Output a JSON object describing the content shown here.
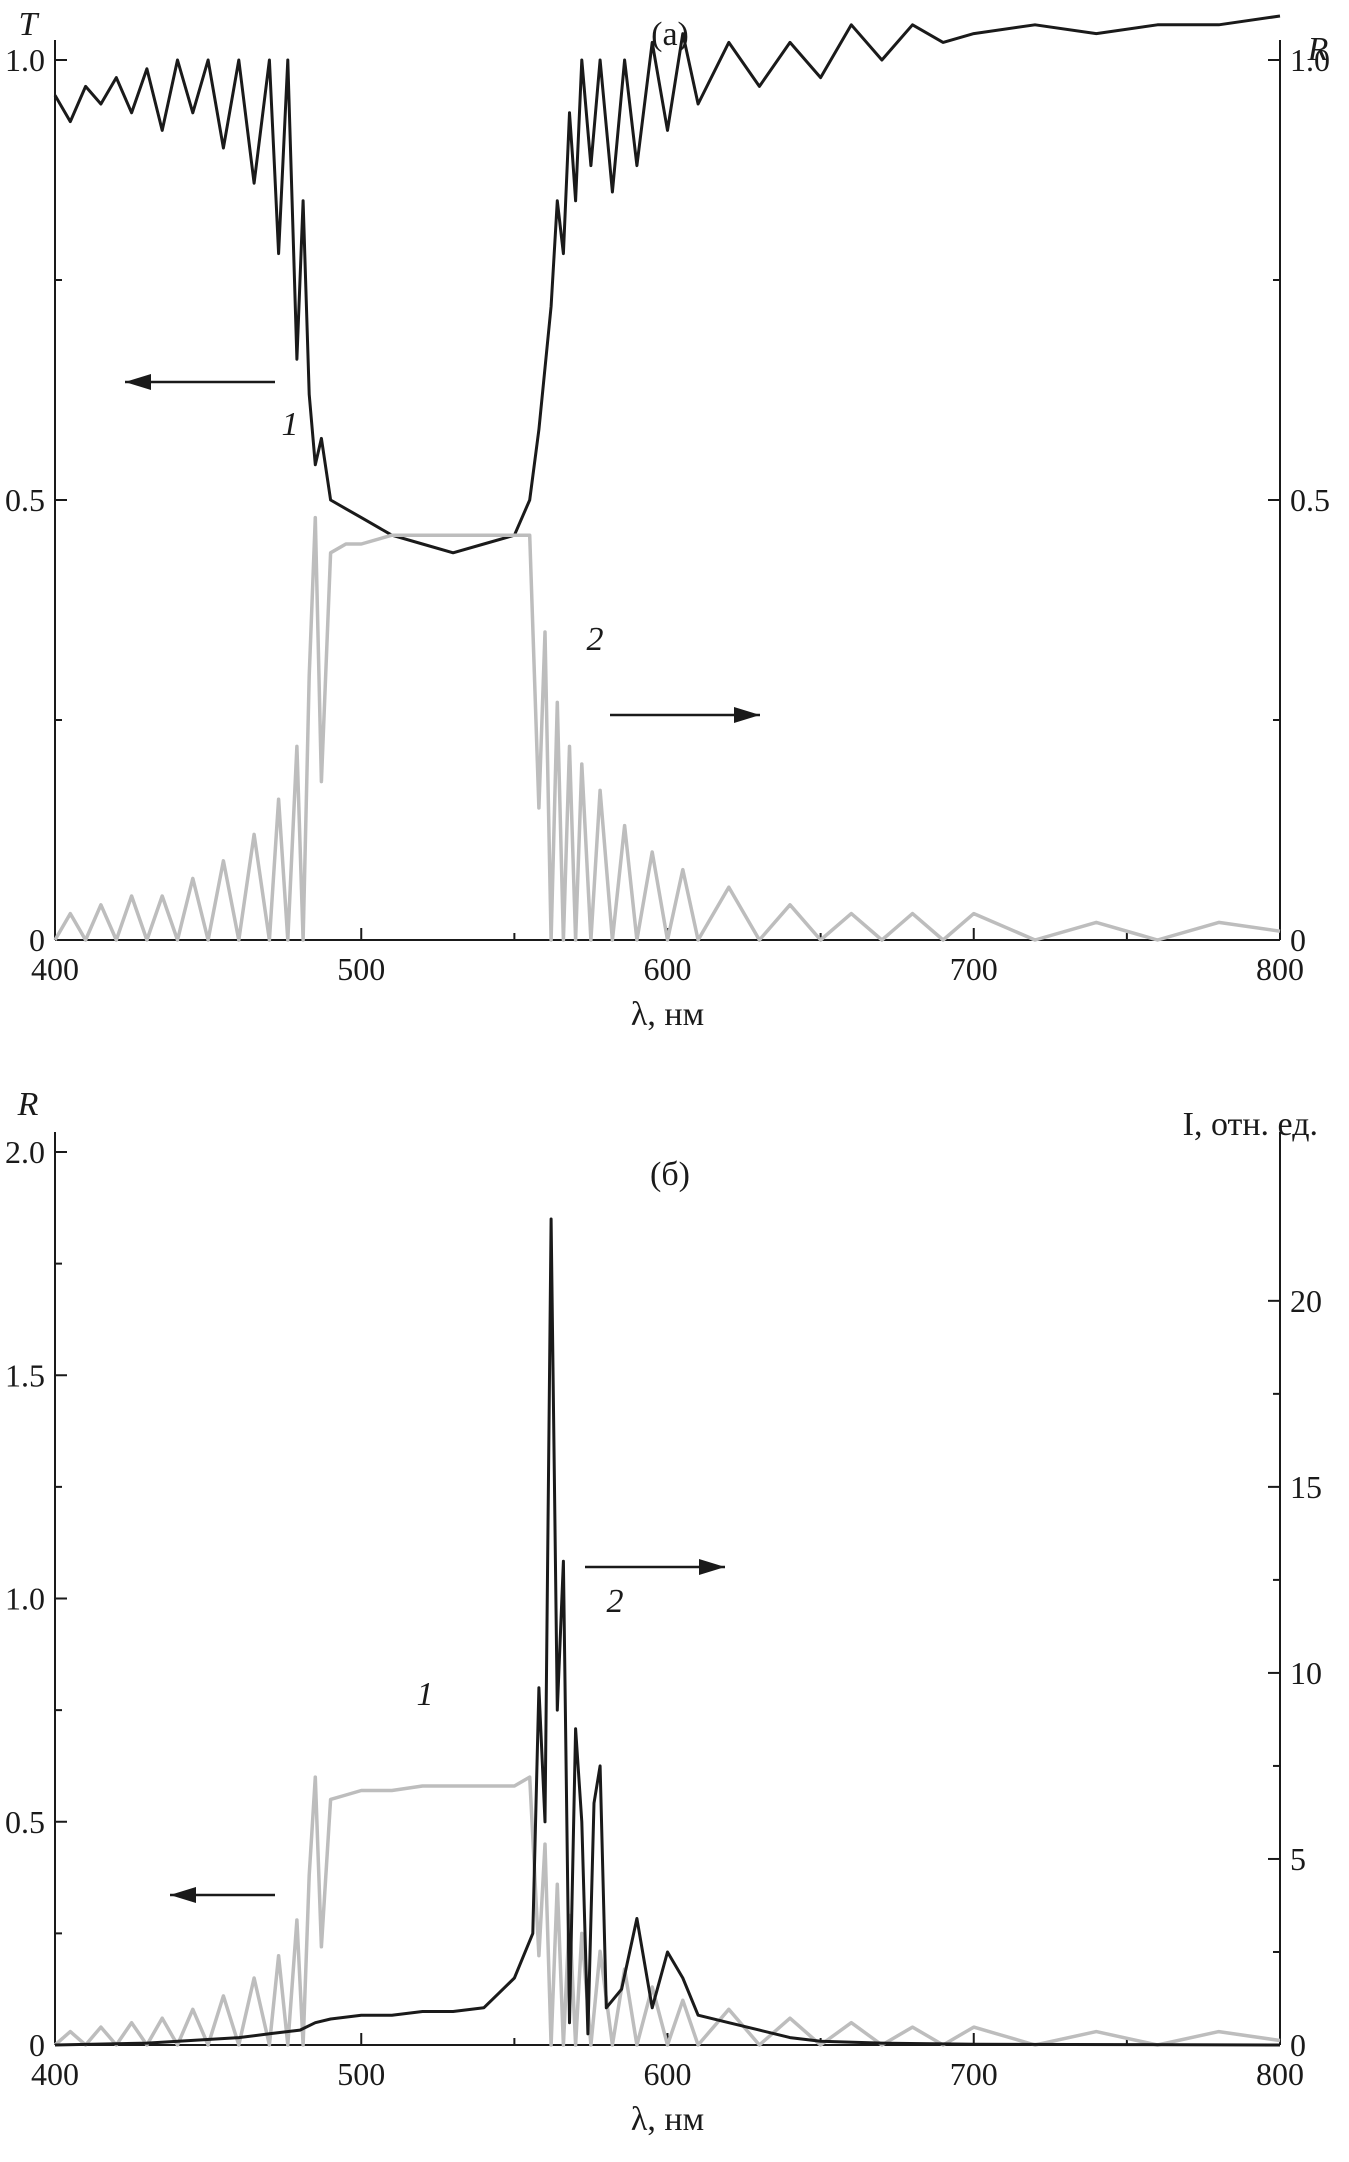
{
  "chart_data": [
    {
      "panel": "(a)",
      "type": "line",
      "xlabel": "λ, нм",
      "ylabel_left": "T",
      "ylabel_right": "R",
      "xlim": [
        400,
        800
      ],
      "ylim_left": [
        0,
        1.0
      ],
      "ylim_right": [
        0,
        1.0
      ],
      "x_ticks": [
        "400",
        "500",
        "600",
        "700",
        "800"
      ],
      "y_left_ticks": [
        "0",
        "0.5",
        "1.0"
      ],
      "y_right_ticks": [
        "0",
        "0.5",
        "1.0"
      ],
      "grid": false,
      "series": [
        {
          "label": "1",
          "axis": "left",
          "color": "#1a1a1a",
          "arrow": "left",
          "x": [
            400,
            405,
            410,
            415,
            420,
            425,
            430,
            435,
            440,
            445,
            450,
            455,
            460,
            465,
            470,
            473,
            476,
            479,
            481,
            483,
            485,
            487,
            490,
            495,
            500,
            510,
            520,
            530,
            540,
            550,
            555,
            558,
            560,
            562,
            564,
            566,
            568,
            570,
            572,
            575,
            578,
            582,
            586,
            590,
            595,
            600,
            605,
            610,
            620,
            630,
            640,
            650,
            660,
            670,
            680,
            690,
            700,
            720,
            740,
            760,
            780,
            800
          ],
          "y": [
            0.96,
            0.93,
            0.97,
            0.95,
            0.98,
            0.94,
            0.99,
            0.92,
            1.0,
            0.94,
            1.0,
            0.9,
            1.0,
            0.86,
            1.0,
            0.78,
            1.0,
            0.66,
            0.84,
            0.62,
            0.54,
            0.57,
            0.5,
            0.49,
            0.48,
            0.46,
            0.45,
            0.44,
            0.45,
            0.46,
            0.5,
            0.58,
            0.65,
            0.72,
            0.84,
            0.78,
            0.94,
            0.84,
            1.0,
            0.88,
            1.0,
            0.85,
            1.0,
            0.88,
            1.02,
            0.92,
            1.03,
            0.95,
            1.02,
            0.97,
            1.02,
            0.98,
            1.04,
            1.0,
            1.04,
            1.02,
            1.03,
            1.04,
            1.03,
            1.04,
            1.04,
            1.05
          ]
        },
        {
          "label": "2",
          "axis": "right",
          "color": "#bdbdbd",
          "arrow": "right",
          "x": [
            400,
            405,
            410,
            415,
            420,
            425,
            430,
            435,
            440,
            445,
            450,
            455,
            460,
            465,
            470,
            473,
            476,
            479,
            481,
            483,
            485,
            487,
            490,
            495,
            500,
            510,
            520,
            530,
            540,
            550,
            555,
            558,
            560,
            562,
            564,
            566,
            568,
            570,
            572,
            575,
            578,
            582,
            586,
            590,
            595,
            600,
            605,
            610,
            620,
            630,
            640,
            650,
            660,
            670,
            680,
            690,
            700,
            720,
            740,
            760,
            780,
            800
          ],
          "y": [
            0.0,
            0.03,
            0.0,
            0.04,
            0.0,
            0.05,
            0.0,
            0.05,
            0.0,
            0.07,
            0.0,
            0.09,
            0.0,
            0.12,
            0.0,
            0.16,
            0.0,
            0.22,
            0.0,
            0.3,
            0.48,
            0.18,
            0.44,
            0.45,
            0.45,
            0.46,
            0.46,
            0.46,
            0.46,
            0.46,
            0.46,
            0.15,
            0.35,
            0.0,
            0.27,
            0.0,
            0.22,
            0.0,
            0.2,
            0.0,
            0.17,
            0.0,
            0.13,
            0.0,
            0.1,
            0.0,
            0.08,
            0.0,
            0.06,
            0.0,
            0.04,
            0.0,
            0.03,
            0.0,
            0.03,
            0.0,
            0.03,
            0.0,
            0.02,
            0.0,
            0.02,
            0.01
          ]
        }
      ]
    },
    {
      "panel": "(б)",
      "type": "line",
      "xlabel": "λ, нм",
      "ylabel_left": "R",
      "ylabel_right": "I, отн. ед.",
      "xlim": [
        400,
        800
      ],
      "ylim_left": [
        0,
        2.0
      ],
      "ylim_right": [
        0,
        24
      ],
      "x_ticks": [
        "400",
        "500",
        "600",
        "700",
        "800"
      ],
      "y_left_ticks": [
        "0",
        "0.5",
        "1.0",
        "1.5",
        "2.0"
      ],
      "y_right_ticks": [
        "0",
        "5",
        "10",
        "15",
        "20"
      ],
      "grid": false,
      "series": [
        {
          "label": "1",
          "axis": "left",
          "color": "#bdbdbd",
          "arrow": "left",
          "x": [
            400,
            405,
            410,
            415,
            420,
            425,
            430,
            435,
            440,
            445,
            450,
            455,
            460,
            465,
            470,
            473,
            476,
            479,
            481,
            483,
            485,
            487,
            490,
            495,
            500,
            510,
            520,
            530,
            540,
            550,
            555,
            558,
            560,
            562,
            564,
            566,
            568,
            570,
            572,
            575,
            578,
            582,
            586,
            590,
            595,
            600,
            605,
            610,
            620,
            630,
            640,
            650,
            660,
            670,
            680,
            690,
            700,
            720,
            740,
            760,
            780,
            800
          ],
          "y": [
            0.0,
            0.03,
            0.0,
            0.04,
            0.0,
            0.05,
            0.0,
            0.06,
            0.0,
            0.08,
            0.0,
            0.11,
            0.0,
            0.15,
            0.0,
            0.2,
            0.0,
            0.28,
            0.0,
            0.38,
            0.6,
            0.22,
            0.55,
            0.56,
            0.57,
            0.57,
            0.58,
            0.58,
            0.58,
            0.58,
            0.6,
            0.2,
            0.45,
            0.0,
            0.36,
            0.0,
            0.29,
            0.0,
            0.25,
            0.0,
            0.21,
            0.0,
            0.17,
            0.0,
            0.13,
            0.0,
            0.1,
            0.0,
            0.08,
            0.0,
            0.06,
            0.0,
            0.05,
            0.0,
            0.04,
            0.0,
            0.04,
            0.0,
            0.03,
            0.0,
            0.03,
            0.01
          ]
        },
        {
          "label": "2",
          "axis": "right",
          "color": "#1a1a1a",
          "arrow": "right",
          "x": [
            400,
            430,
            460,
            470,
            480,
            485,
            490,
            500,
            510,
            520,
            530,
            540,
            545,
            550,
            553,
            556,
            558,
            560,
            562,
            564,
            566,
            568,
            570,
            572,
            574,
            576,
            578,
            580,
            585,
            590,
            595,
            600,
            605,
            610,
            620,
            630,
            640,
            650,
            670,
            700,
            750,
            800
          ],
          "y": [
            0.0,
            0.05,
            0.2,
            0.3,
            0.4,
            0.6,
            0.7,
            0.8,
            0.8,
            0.9,
            0.9,
            1.0,
            1.4,
            1.8,
            2.4,
            3.0,
            9.6,
            6.0,
            22.2,
            9.0,
            13.0,
            0.6,
            8.5,
            6.0,
            0.3,
            6.5,
            7.5,
            1.0,
            1.5,
            3.4,
            1.0,
            2.5,
            1.8,
            0.8,
            0.6,
            0.4,
            0.2,
            0.1,
            0.05,
            0.02,
            0.01,
            0.0
          ]
        }
      ]
    }
  ]
}
